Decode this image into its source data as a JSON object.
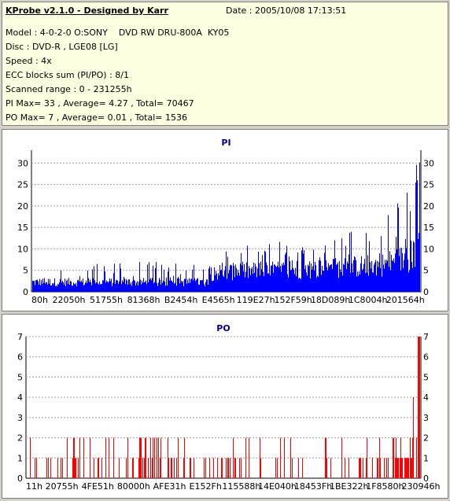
{
  "info": {
    "title": "KProbe v2.1.0 - Designed by Karr",
    "date": "Date : 2005/10/08 17:13:51",
    "model": "Model : 4-0-2-0 O:SONY    DVD RW DRU-800A  KY05",
    "disc": "Disc : DVD-R , LGE08 [LG]",
    "speed": "Speed : 4x",
    "ecc": "ECC blocks sum (PI/PO) : 8/1",
    "range": "Scanned range : 0 - 231255h",
    "pi_stats": "PI Max= 33 , Average= 4.27 , Total= 70467",
    "po_stats": "PO Max= 7 , Average= 0.01 , Total= 1536"
  },
  "colors": {
    "pi": "#0000ff",
    "po": "#ff0000",
    "title": "#000080",
    "grid": "#a0a0a0"
  },
  "chart_data": [
    {
      "type": "bar",
      "title": "PI",
      "ylim": [
        0,
        33
      ],
      "yticks": [
        0,
        5,
        10,
        15,
        20,
        25,
        30
      ],
      "xticks": [
        "80h",
        "22050h",
        "51755h",
        "81368h",
        "B2454h",
        "E4565h",
        "119E27h",
        "152F59h",
        "18D089h",
        "1C8004h",
        "201564h"
      ],
      "x_range_label": "0 - 231255h",
      "max": 33,
      "average": 4.27,
      "total": 70467,
      "profile": [
        {
          "position": 0.0,
          "base": 2.5,
          "peak": 7
        },
        {
          "position": 0.45,
          "base": 2.5,
          "peak": 7
        },
        {
          "position": 0.46,
          "base": 5,
          "peak": 10
        },
        {
          "position": 0.75,
          "base": 6,
          "peak": 13
        },
        {
          "position": 0.9,
          "base": 7,
          "peak": 17
        },
        {
          "position": 0.97,
          "base": 9,
          "peak": 25
        },
        {
          "position": 1.0,
          "base": 12,
          "peak": 33
        }
      ]
    },
    {
      "type": "bar",
      "title": "PO",
      "ylim": [
        0,
        7
      ],
      "yticks": [
        0,
        1,
        2,
        3,
        4,
        5,
        6,
        7
      ],
      "xticks": [
        "11h",
        "20755h",
        "4FE51h",
        "80000h",
        "AFE31h",
        "E152Fh",
        "115588h",
        "14E040h",
        "18453Fh",
        "1BE322h",
        "1F8580h",
        "230946h"
      ],
      "max": 7,
      "average": 0.01,
      "total": 1536
    }
  ]
}
